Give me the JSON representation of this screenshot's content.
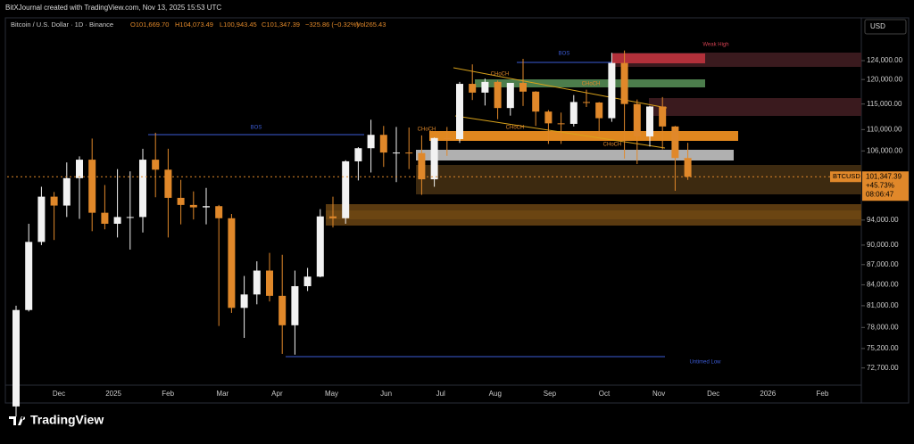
{
  "header": {
    "credit": "BitXJournal created with TradingView.com, Nov 13, 2025 15:53 UTC",
    "symbol": "Bitcoin / U.S. Dollar · 1D · Binance",
    "open": "O101,669.70",
    "high": "H104,073.49",
    "low": "L100,943.45",
    "close": "C101,347.39",
    "change": "−325.86 (−0.32%)",
    "volume": "Vol265.43",
    "currency": "USD"
  },
  "footer": {
    "brand": "TradingView"
  },
  "chart_data": {
    "type": "candlestick",
    "log_scale": true,
    "up_color": "#f2f2f2",
    "down_color": "#e0882a",
    "ylim": [
      70560,
      129500
    ],
    "yticks": [
      {
        "value": 124000,
        "label": "124,000.00"
      },
      {
        "value": 120000,
        "label": "120,000.00"
      },
      {
        "value": 115000,
        "label": "115,000.00"
      },
      {
        "value": 110000,
        "label": "110,000.00"
      },
      {
        "value": 106000,
        "label": "106,000.00"
      },
      {
        "value": 94000,
        "label": "94,000.00"
      },
      {
        "value": 90000,
        "label": "90,000.00"
      },
      {
        "value": 87000,
        "label": "87,000.00"
      },
      {
        "value": 84000,
        "label": "84,000.00"
      },
      {
        "value": 81000,
        "label": "81,000.00"
      },
      {
        "value": 78000,
        "label": "78,000.00"
      },
      {
        "value": 75200,
        "label": "75,200.00"
      },
      {
        "value": 72700,
        "label": "72,700.00"
      }
    ],
    "x_labels": [
      "Dec",
      "2025",
      "Feb",
      "Mar",
      "Apr",
      "May",
      "Jun",
      "Jul",
      "Aug",
      "Sep",
      "Oct",
      "Nov",
      "Dec",
      "2026",
      "Feb"
    ],
    "categories": [
      null,
      null,
      null,
      null,
      null,
      null,
      null,
      null,
      null,
      null,
      null,
      null,
      null,
      null,
      null,
      null,
      null,
      null,
      null,
      null,
      null,
      null,
      null,
      null,
      null,
      null,
      null,
      null,
      null,
      null,
      null,
      null,
      null,
      null,
      null,
      null,
      null,
      null,
      null,
      null,
      null,
      null,
      null,
      null,
      null,
      null,
      null,
      null,
      null,
      null,
      null,
      null,
      null,
      null
    ],
    "open": [
      68000,
      80400,
      90500,
      97900,
      96400,
      101100,
      104400,
      95200,
      93400,
      94500,
      94500,
      104400,
      102600,
      97700,
      96500,
      96100,
      96300,
      94300,
      80700,
      82600,
      86100,
      82400,
      78300,
      83800,
      85200,
      94600,
      94300,
      104100,
      106500,
      109000,
      105700,
      105700,
      105600,
      100900,
      108400,
      108200,
      119100,
      117300,
      119500,
      114200,
      119300,
      117500,
      113500,
      111200,
      111100,
      115400,
      115300,
      112200,
      123500,
      115000,
      108700,
      114500,
      110600,
      104700
    ],
    "high": [
      81000,
      93400,
      99600,
      98700,
      103900,
      105000,
      108300,
      99900,
      102700,
      102300,
      106400,
      109400,
      106400,
      100800,
      98800,
      99400,
      96500,
      95000,
      85300,
      87500,
      88800,
      88500,
      86100,
      86500,
      95800,
      97900,
      104300,
      106700,
      111900,
      110700,
      110500,
      110400,
      108900,
      108500,
      110500,
      119500,
      123200,
      120200,
      119800,
      119300,
      124400,
      117600,
      113800,
      113300,
      116800,
      117900,
      115400,
      125700,
      126200,
      115900,
      114600,
      116400,
      110700,
      107500
    ],
    "low": [
      66800,
      80200,
      90000,
      90800,
      94500,
      94200,
      92200,
      92500,
      91200,
      89300,
      92000,
      97800,
      91200,
      93300,
      94100,
      93300,
      78200,
      80000,
      76600,
      81200,
      81600,
      74500,
      74400,
      83100,
      85100,
      92800,
      93400,
      100700,
      102100,
      103100,
      100400,
      102700,
      98200,
      99600,
      105100,
      107500,
      115800,
      114700,
      112000,
      112700,
      114600,
      110700,
      107300,
      107300,
      110600,
      114400,
      108600,
      111500,
      104600,
      103600,
      106800,
      106300,
      98900,
      100800
    ],
    "close": [
      80400,
      90500,
      97900,
      96400,
      101100,
      104400,
      95200,
      93400,
      94500,
      94500,
      104400,
      102600,
      97700,
      96500,
      96100,
      96300,
      94300,
      80700,
      82600,
      86100,
      82400,
      78300,
      83800,
      85200,
      94600,
      94300,
      104100,
      106500,
      109000,
      105700,
      105700,
      105600,
      100900,
      108400,
      108200,
      119100,
      117300,
      119500,
      114200,
      119300,
      117500,
      113500,
      111200,
      111100,
      115400,
      115300,
      112200,
      123500,
      115000,
      108700,
      114500,
      110600,
      104700,
      101347.39
    ],
    "price_label": {
      "symbol": "BTCUSD",
      "price": "101,347.39",
      "change": "+45.73%",
      "countdown": "08:06:47"
    },
    "annotations": [
      "BOS",
      "BOS",
      "CHoCH",
      "CHoCH",
      "CHoCH",
      "CHoCH",
      "CHoCH",
      "Weak High",
      "Untimed Low"
    ]
  }
}
